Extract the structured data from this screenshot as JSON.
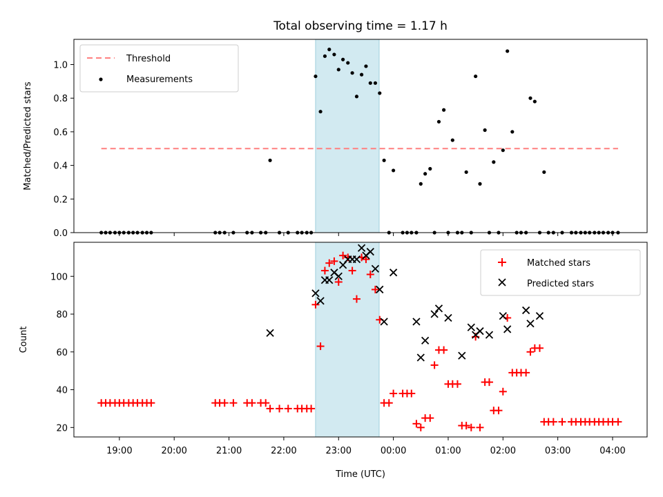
{
  "chart_data": [
    {
      "type": "scatter",
      "title": "Total observing time = 1.17 h",
      "ylabel": "Matched/Predicted stars",
      "xlabel": "",
      "xlim": [
        18.17,
        28.63
      ],
      "ylim": [
        0,
        1.15
      ],
      "x_ticks": [
        19,
        20,
        21,
        22,
        23,
        24,
        25,
        26,
        27,
        28
      ],
      "y_ticks": [
        0.0,
        0.2,
        0.4,
        0.6,
        0.8,
        1.0
      ],
      "y_tick_labels": [
        "0.0",
        "0.2",
        "0.4",
        "0.6",
        "0.8",
        "1.0"
      ],
      "highlight_span": [
        22.58,
        23.74
      ],
      "legend_position": "top-left",
      "grid": false,
      "threshold": {
        "name": "Threshold",
        "y": 0.5,
        "x_start": 18.67,
        "x_end": 28.1,
        "color": "#ff7f7f"
      },
      "series": [
        {
          "name": "Measurements",
          "color": "#000000",
          "x": [
            18.67,
            18.75,
            18.83,
            18.92,
            19.0,
            19.08,
            19.17,
            19.25,
            19.33,
            19.42,
            19.5,
            19.58,
            20.75,
            20.83,
            20.92,
            21.08,
            21.33,
            21.42,
            21.58,
            21.67,
            21.75,
            21.92,
            22.08,
            22.25,
            22.33,
            22.42,
            22.5,
            22.58,
            22.67,
            22.75,
            22.83,
            22.92,
            23.0,
            23.08,
            23.17,
            23.25,
            23.33,
            23.42,
            23.5,
            23.58,
            23.67,
            23.75,
            23.83,
            23.92,
            24.0,
            24.17,
            24.25,
            24.33,
            24.42,
            24.5,
            24.58,
            24.67,
            24.75,
            24.83,
            24.92,
            25.0,
            25.08,
            25.17,
            25.25,
            25.33,
            25.42,
            25.5,
            25.58,
            25.67,
            25.75,
            25.83,
            25.92,
            26.0,
            26.08,
            26.17,
            26.25,
            26.33,
            26.42,
            26.5,
            26.58,
            26.67,
            26.75,
            26.83,
            26.92,
            27.08,
            27.25,
            27.33,
            27.42,
            27.5,
            27.58,
            27.67,
            27.75,
            27.83,
            27.92,
            28.0,
            28.1
          ],
          "y": [
            0,
            0,
            0,
            0,
            0,
            0,
            0,
            0,
            0,
            0,
            0,
            0,
            0,
            0,
            0,
            0,
            0,
            0,
            0,
            0,
            0.43,
            0,
            0,
            0,
            0,
            0,
            0,
            0.93,
            0.72,
            1.05,
            1.09,
            1.06,
            0.97,
            1.03,
            1.01,
            0.95,
            0.81,
            0.94,
            0.99,
            0.89,
            0.89,
            0.83,
            0.43,
            0,
            0.37,
            0,
            0,
            0,
            0,
            0.29,
            0.35,
            0.38,
            0,
            0.66,
            0.73,
            0,
            0.55,
            0,
            0,
            0.36,
            0,
            0.93,
            0.29,
            0.61,
            0,
            0.42,
            0,
            0.49,
            1.08,
            0.6,
            0,
            0,
            0,
            0.8,
            0.78,
            0,
            0.36,
            0,
            0,
            0,
            0,
            0,
            0,
            0,
            0,
            0,
            0,
            0,
            0,
            0,
            0
          ]
        }
      ]
    },
    {
      "type": "scatter",
      "title": "",
      "ylabel": "Count",
      "xlabel": "Time (UTC)",
      "xlim": [
        18.17,
        28.63
      ],
      "ylim": [
        15,
        118
      ],
      "x_ticks": [
        19,
        20,
        21,
        22,
        23,
        24,
        25,
        26,
        27,
        28
      ],
      "x_tick_labels": [
        "19:00",
        "20:00",
        "21:00",
        "22:00",
        "23:00",
        "00:00",
        "01:00",
        "02:00",
        "03:00",
        "04:00"
      ],
      "y_ticks": [
        20,
        40,
        60,
        80,
        100
      ],
      "y_tick_labels": [
        "20",
        "40",
        "60",
        "80",
        "100"
      ],
      "highlight_span": [
        22.58,
        23.74
      ],
      "legend_position": "top-right",
      "grid": false,
      "series": [
        {
          "name": "Matched stars",
          "marker": "plus",
          "color": "#ff0000",
          "x": [
            18.67,
            18.75,
            18.83,
            18.92,
            19.0,
            19.08,
            19.17,
            19.25,
            19.33,
            19.42,
            19.5,
            19.58,
            20.75,
            20.83,
            20.92,
            21.08,
            21.33,
            21.42,
            21.58,
            21.67,
            21.75,
            21.92,
            22.08,
            22.25,
            22.33,
            22.42,
            22.5,
            22.58,
            22.67,
            22.75,
            22.83,
            22.92,
            23.0,
            23.08,
            23.17,
            23.25,
            23.33,
            23.42,
            23.5,
            23.58,
            23.67,
            23.75,
            23.83,
            23.92,
            24.0,
            24.17,
            24.25,
            24.33,
            24.42,
            24.5,
            24.58,
            24.67,
            24.75,
            24.83,
            24.92,
            25.0,
            25.08,
            25.17,
            25.25,
            25.33,
            25.42,
            25.5,
            25.58,
            25.67,
            25.75,
            25.83,
            25.92,
            26.0,
            26.08,
            26.17,
            26.25,
            26.33,
            26.42,
            26.5,
            26.58,
            26.67,
            26.75,
            26.83,
            26.92,
            27.08,
            27.25,
            27.33,
            27.42,
            27.5,
            27.58,
            27.67,
            27.75,
            27.83,
            27.92,
            28.0,
            28.1
          ],
          "y": [
            33,
            33,
            33,
            33,
            33,
            33,
            33,
            33,
            33,
            33,
            33,
            33,
            33,
            33,
            33,
            33,
            33,
            33,
            33,
            33,
            30,
            30,
            30,
            30,
            30,
            30,
            30,
            85,
            63,
            103,
            107,
            108,
            97,
            111,
            110,
            103,
            88,
            110,
            109,
            101,
            93,
            77,
            33,
            33,
            38,
            38,
            38,
            38,
            22,
            20,
            25,
            25,
            53,
            61,
            61,
            43,
            43,
            43,
            21,
            21,
            20,
            68,
            20,
            44,
            44,
            29,
            29,
            39,
            78,
            49,
            49,
            49,
            49,
            60,
            62,
            62,
            23,
            23,
            23,
            23,
            23,
            23,
            23,
            23,
            23,
            23,
            23,
            23,
            23,
            23,
            23
          ]
        },
        {
          "name": "Predicted stars",
          "marker": "x",
          "color": "#000000",
          "x": [
            21.75,
            22.58,
            22.67,
            22.75,
            22.83,
            22.92,
            23.0,
            23.08,
            23.17,
            23.25,
            23.33,
            23.42,
            23.5,
            23.58,
            23.67,
            23.75,
            23.83,
            24.0,
            24.42,
            24.5,
            24.58,
            24.75,
            24.83,
            25.0,
            25.25,
            25.42,
            25.5,
            25.58,
            25.75,
            26.0,
            26.08,
            26.42,
            26.5,
            26.67
          ],
          "y": [
            70,
            91,
            87,
            98,
            98,
            102,
            100,
            106,
            109,
            109,
            109,
            115,
            111,
            113,
            104,
            93,
            76,
            102,
            76,
            57,
            66,
            80,
            83,
            78,
            58,
            73,
            69,
            71,
            69,
            79,
            72,
            82,
            75,
            79
          ]
        }
      ]
    }
  ]
}
